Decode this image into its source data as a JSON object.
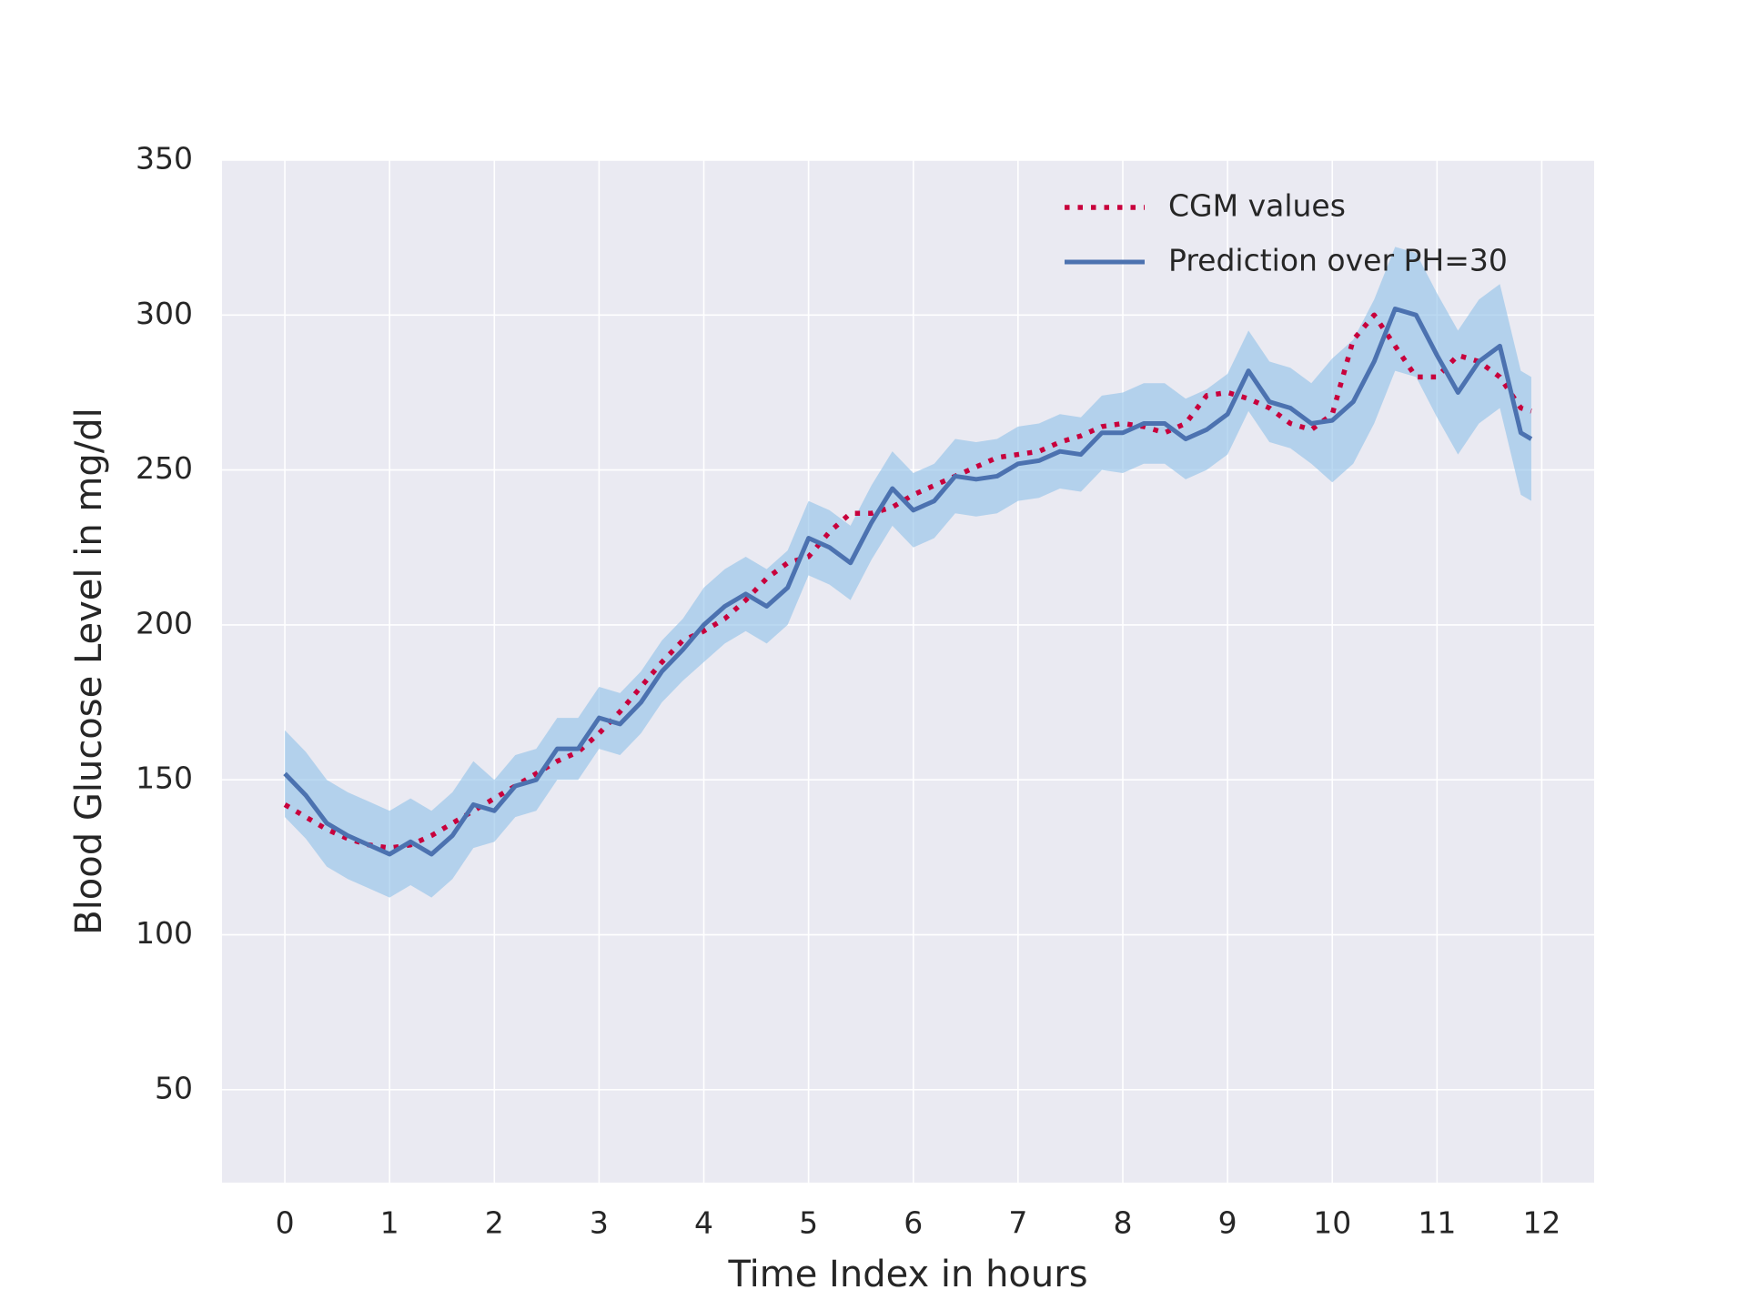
{
  "chart_data": {
    "type": "line",
    "xlabel": "Time Index in hours",
    "ylabel": "Blood Glucose Level in mg/dl",
    "x": [
      0,
      0.2,
      0.4,
      0.6,
      0.8,
      1.0,
      1.2,
      1.4,
      1.6,
      1.8,
      2.0,
      2.2,
      2.4,
      2.6,
      2.8,
      3.0,
      3.2,
      3.4,
      3.6,
      3.8,
      4.0,
      4.2,
      4.4,
      4.6,
      4.8,
      5.0,
      5.2,
      5.4,
      5.6,
      5.8,
      6.0,
      6.2,
      6.4,
      6.6,
      6.8,
      7.0,
      7.2,
      7.4,
      7.6,
      7.8,
      8.0,
      8.2,
      8.4,
      8.6,
      8.8,
      9.0,
      9.2,
      9.4,
      9.6,
      9.8,
      10.0,
      10.2,
      10.4,
      10.6,
      10.8,
      11.0,
      11.2,
      11.4,
      11.6,
      11.8,
      11.9
    ],
    "series": [
      {
        "name": "CGM values",
        "color": "#c8003c",
        "dash": "dotted",
        "values": [
          142,
          138,
          134,
          131,
          129,
          128,
          129,
          132,
          136,
          140,
          144,
          148,
          152,
          156,
          159,
          165,
          172,
          180,
          188,
          195,
          198,
          202,
          208,
          215,
          220,
          222,
          230,
          236,
          236,
          238,
          242,
          245,
          248,
          251,
          254,
          255,
          256,
          259,
          261,
          264,
          265,
          264,
          262,
          265,
          274,
          275,
          273,
          270,
          265,
          263,
          268,
          292,
          300,
          290,
          280,
          280,
          287,
          285,
          280,
          270,
          269
        ]
      },
      {
        "name": "Prediction over PH=30",
        "color": "#4c72b0",
        "dash": "solid",
        "values": [
          152,
          145,
          136,
          132,
          129,
          126,
          130,
          126,
          132,
          142,
          140,
          148,
          150,
          160,
          160,
          170,
          168,
          175,
          185,
          192,
          200,
          206,
          210,
          206,
          212,
          228,
          225,
          220,
          233,
          244,
          237,
          240,
          248,
          247,
          248,
          252,
          253,
          256,
          255,
          262,
          262,
          265,
          265,
          260,
          263,
          268,
          282,
          272,
          270,
          265,
          266,
          272,
          285,
          302,
          300,
          287,
          275,
          285,
          290,
          262,
          260
        ]
      }
    ],
    "band": {
      "color": "#8dbfe8",
      "lower": [
        138,
        131,
        122,
        118,
        115,
        112,
        116,
        112,
        118,
        128,
        130,
        138,
        140,
        150,
        150,
        160,
        158,
        165,
        175,
        182,
        188,
        194,
        198,
        194,
        200,
        216,
        213,
        208,
        221,
        232,
        225,
        228,
        236,
        235,
        236,
        240,
        241,
        244,
        243,
        250,
        249,
        252,
        252,
        247,
        250,
        255,
        269,
        259,
        257,
        252,
        246,
        252,
        265,
        282,
        280,
        267,
        255,
        265,
        270,
        242,
        240
      ],
      "upper": [
        166,
        159,
        150,
        146,
        143,
        140,
        144,
        140,
        146,
        156,
        150,
        158,
        160,
        170,
        170,
        180,
        178,
        185,
        195,
        202,
        212,
        218,
        222,
        218,
        224,
        240,
        237,
        232,
        245,
        256,
        249,
        252,
        260,
        259,
        260,
        264,
        265,
        268,
        267,
        274,
        275,
        278,
        278,
        273,
        276,
        281,
        295,
        285,
        283,
        278,
        286,
        292,
        305,
        322,
        320,
        307,
        295,
        305,
        310,
        282,
        280
      ]
    },
    "xlim": [
      -0.6,
      12.5
    ],
    "ylim": [
      20,
      350
    ],
    "xticks": [
      0,
      1,
      2,
      3,
      4,
      5,
      6,
      7,
      8,
      9,
      10,
      11,
      12
    ],
    "yticks": [
      50,
      100,
      150,
      200,
      250,
      300,
      350
    ],
    "grid": true,
    "legend": "upper right"
  }
}
